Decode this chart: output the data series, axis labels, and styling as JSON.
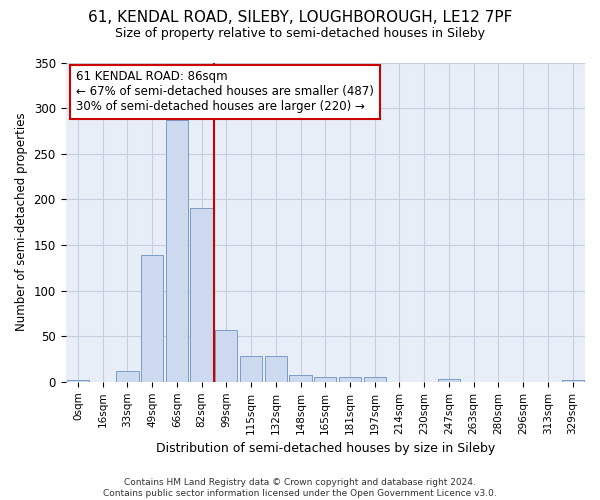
{
  "title": "61, KENDAL ROAD, SILEBY, LOUGHBOROUGH, LE12 7PF",
  "subtitle": "Size of property relative to semi-detached houses in Sileby",
  "xlabel": "Distribution of semi-detached houses by size in Sileby",
  "ylabel": "Number of semi-detached properties",
  "categories": [
    "0sqm",
    "16sqm",
    "33sqm",
    "49sqm",
    "66sqm",
    "82sqm",
    "99sqm",
    "115sqm",
    "132sqm",
    "148sqm",
    "165sqm",
    "181sqm",
    "197sqm",
    "214sqm",
    "230sqm",
    "247sqm",
    "263sqm",
    "280sqm",
    "296sqm",
    "313sqm",
    "329sqm"
  ],
  "bar_heights": [
    2,
    0,
    12,
    139,
    287,
    190,
    57,
    28,
    28,
    8,
    5,
    5,
    5,
    0,
    0,
    3,
    0,
    0,
    0,
    0,
    2
  ],
  "bar_color": "#cdd9ef",
  "bar_edge_color": "#7a9cc8",
  "marker_index": 6,
  "marker_color": "#cc0000",
  "annotation_text": "61 KENDAL ROAD: 86sqm\n← 67% of semi-detached houses are smaller (487)\n30% of semi-detached houses are larger (220) →",
  "annotation_box_edge": "#cc0000",
  "ylim": [
    0,
    350
  ],
  "yticks": [
    0,
    50,
    100,
    150,
    200,
    250,
    300,
    350
  ],
  "footer": "Contains HM Land Registry data © Crown copyright and database right 2024.\nContains public sector information licensed under the Open Government Licence v3.0.",
  "bg_color": "#ffffff",
  "plot_bg_color": "#e8eef8",
  "grid_color": "#c5cfe0"
}
